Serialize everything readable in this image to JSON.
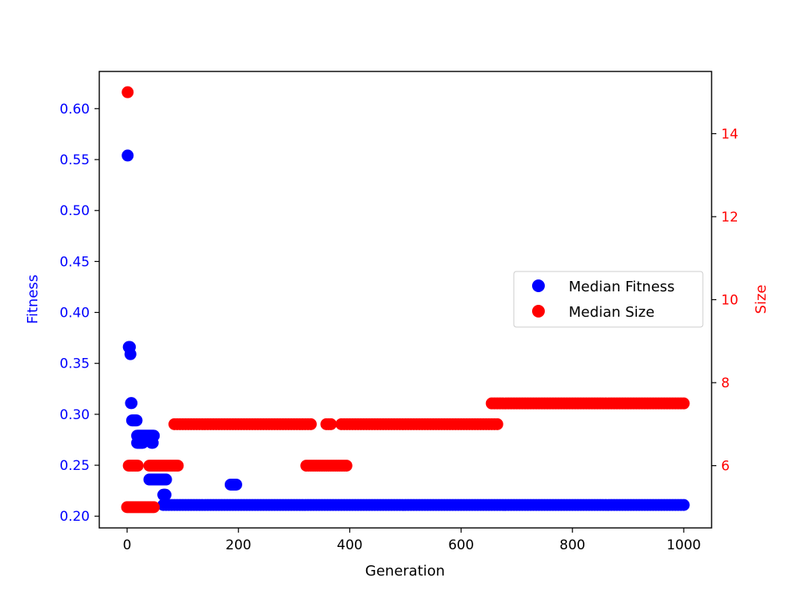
{
  "chart_data": {
    "type": "scatter",
    "title": "",
    "xlabel": "Generation",
    "ylabel_left": "Fitness",
    "ylabel_right": "Size",
    "xlim": [
      -50,
      1050
    ],
    "ylim_left": [
      0.1885,
      0.6365
    ],
    "ylim_right": [
      4.5,
      15.5
    ],
    "x_ticks": [
      0,
      200,
      400,
      600,
      800,
      1000
    ],
    "y_ticks_left": [
      0.2,
      0.25,
      0.3,
      0.35,
      0.4,
      0.45,
      0.5,
      0.55,
      0.6
    ],
    "y_ticks_right": [
      6,
      8,
      10,
      12,
      14
    ],
    "grid": false,
    "legend_position": "center-right",
    "colors": {
      "fitness": "#0000ff",
      "size": "#ff0000",
      "left_axis_text": "#0000ff",
      "right_axis_text": "#ff0000"
    },
    "series": [
      {
        "name": "Median Fitness",
        "axis": "left",
        "segments": [
          {
            "x": [
              1
            ],
            "y": 0.554
          },
          {
            "x": [
              3,
              4,
              5
            ],
            "y": 0.366
          },
          {
            "x": [
              6
            ],
            "y": 0.359
          },
          {
            "x": [
              7,
              8
            ],
            "y": 0.311
          },
          {
            "x": [
              9,
              10,
              11,
              12,
              13,
              14,
              15,
              16,
              17
            ],
            "y": 0.294
          },
          {
            "x": [
              18,
              19,
              20,
              21,
              22,
              23,
              24,
              25,
              26,
              27,
              28,
              29,
              30,
              31,
              32,
              33,
              34,
              35,
              36,
              37,
              38,
              39,
              40,
              41,
              42,
              43,
              44,
              45,
              46,
              47,
              48
            ],
            "y": 0.279
          },
          {
            "x": [
              18,
              20,
              22,
              24,
              26,
              28,
              44,
              46
            ],
            "y": 0.272
          },
          {
            "x": [
              40,
              42,
              44,
              46,
              48,
              50,
              52,
              54,
              56,
              58,
              60,
              62,
              64,
              66,
              68,
              70
            ],
            "y": 0.236
          },
          {
            "x": [
              65,
              66,
              67,
              68,
              69
            ],
            "y": 0.221
          },
          {
            "x": [
              186,
              188,
              190,
              192,
              194,
              196
            ],
            "y": 0.231
          },
          {
            "x_range": [
              65,
              1000
            ],
            "step": 5,
            "y": 0.211
          }
        ]
      },
      {
        "name": "Median Size",
        "axis": "right",
        "segments": [
          {
            "x": [
              1
            ],
            "y": 15
          },
          {
            "x_range": [
              0,
              50
            ],
            "step": 3,
            "y": 5
          },
          {
            "x_range": [
              3,
              20
            ],
            "step": 2,
            "y": 6
          },
          {
            "x_range": [
              40,
              92
            ],
            "step": 3,
            "y": 6
          },
          {
            "x_range": [
              85,
              330
            ],
            "step": 5,
            "y": 7
          },
          {
            "x_range": [
              322,
              395
            ],
            "step": 4,
            "y": 6
          },
          {
            "x": [
              358,
              362,
              366
            ],
            "y": 7
          },
          {
            "x_range": [
              385,
              665
            ],
            "step": 5,
            "y": 7
          },
          {
            "x_range": [
              655,
              1000
            ],
            "step": 5,
            "y": 7.5
          }
        ]
      }
    ]
  }
}
